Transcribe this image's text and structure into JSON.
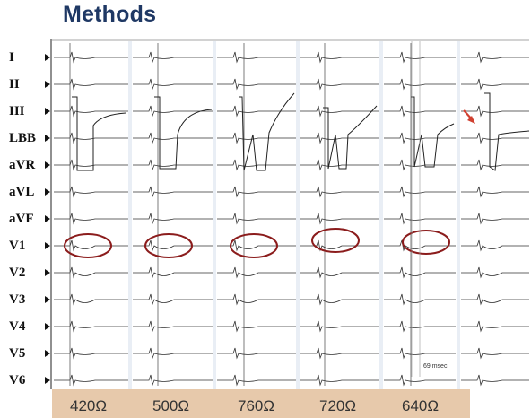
{
  "title": "Methods",
  "leads": [
    "I",
    "II",
    "III",
    "LBB",
    "aVR",
    "aVL",
    "aVF",
    "V1",
    "V2",
    "V3",
    "V4",
    "V5",
    "V6"
  ],
  "impedances": [
    "420Ω",
    "500Ω",
    "760Ω",
    "720Ω",
    "640Ω"
  ],
  "interval_note": "69 msec",
  "colors": {
    "title": "#1f3864",
    "highlight_ellipse": "#8b1c1c",
    "arrow": "#d04030",
    "impedance_bar": "#e7c9ab"
  }
}
